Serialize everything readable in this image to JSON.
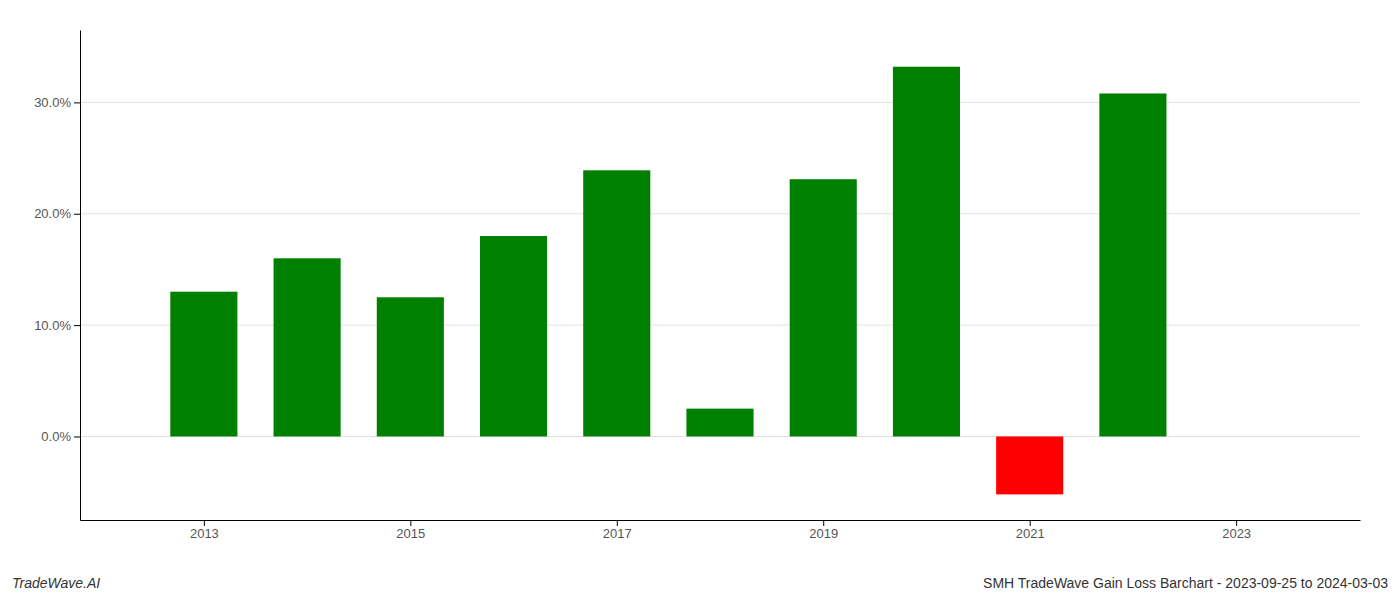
{
  "chart_data": {
    "type": "bar",
    "title": "SMH TradeWave Gain Loss Barchart - 2023-09-25 to 2024-03-03",
    "annotations": [
      "TradeWave.AI"
    ],
    "x": [
      2013,
      2014,
      2015,
      2016,
      2017,
      2018,
      2019,
      2020,
      2021,
      2022
    ],
    "values": [
      0.13,
      0.16,
      0.125,
      0.18,
      0.239,
      0.025,
      0.231,
      0.332,
      -0.052,
      0.308
    ],
    "colors": [
      "#008000",
      "#008000",
      "#008000",
      "#008000",
      "#008000",
      "#008000",
      "#008000",
      "#008000",
      "#ff0000",
      "#008000"
    ],
    "xlim": [
      2011.8,
      2024.2
    ],
    "xticks": [
      2013,
      2015,
      2017,
      2019,
      2021,
      2023
    ],
    "ylim": [
      -0.075,
      0.365
    ],
    "yticks": [
      {
        "value": 0.0,
        "label": "0.0%"
      },
      {
        "value": 0.1,
        "label": "10.0%"
      },
      {
        "value": 0.2,
        "label": "20.0%"
      },
      {
        "value": 0.3,
        "label": "30.0%"
      }
    ],
    "grid": true
  }
}
